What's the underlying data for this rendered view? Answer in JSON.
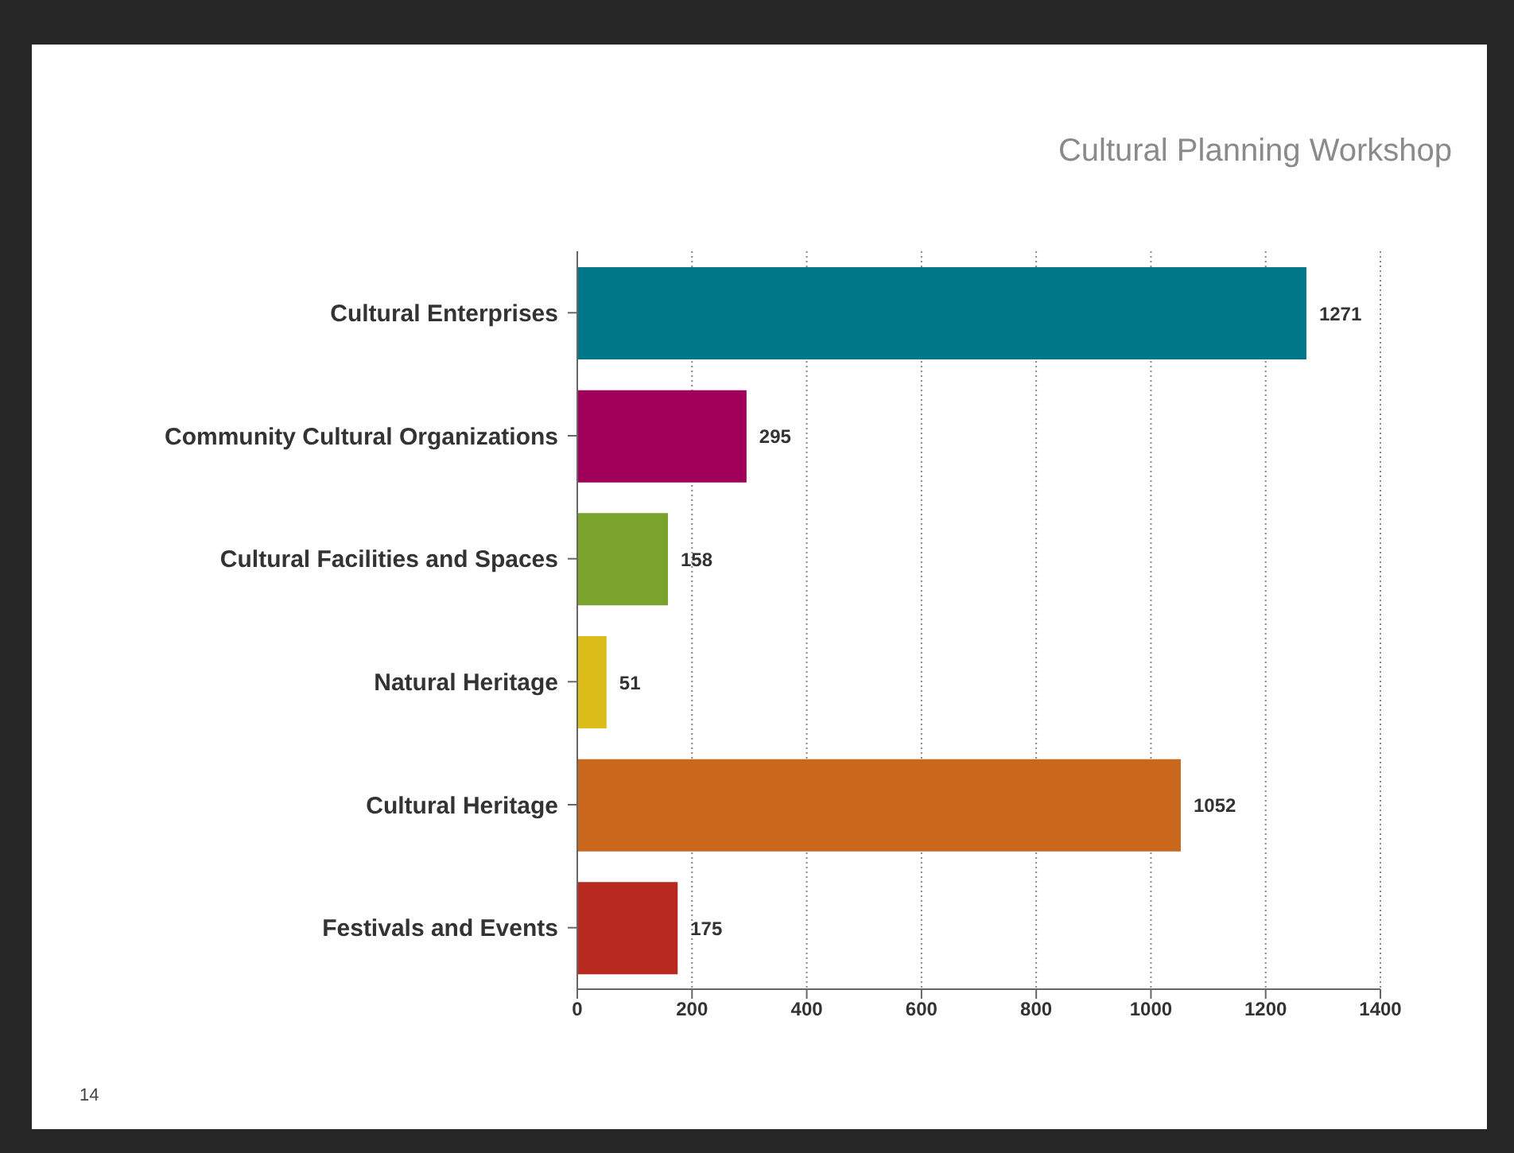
{
  "chart_data": {
    "type": "bar",
    "orientation": "horizontal",
    "title": "Cultural Planning Workshop",
    "categories": [
      "Cultural Enterprises",
      "Community Cultural Organizations",
      "Cultural Facilities and Spaces",
      "Natural Heritage",
      "Cultural Heritage",
      "Festivals and Events"
    ],
    "values": [
      1271,
      295,
      158,
      51,
      1052,
      175
    ],
    "colors": [
      "#00788a",
      "#a0005a",
      "#7aa32e",
      "#dbbd1a",
      "#c9671c",
      "#b82a1f"
    ],
    "xlim": [
      0,
      1400
    ],
    "xticks": [
      0,
      200,
      400,
      600,
      800,
      1000,
      1200,
      1400
    ],
    "grid": "x",
    "data_labels": true,
    "annotations": [
      "14"
    ]
  }
}
